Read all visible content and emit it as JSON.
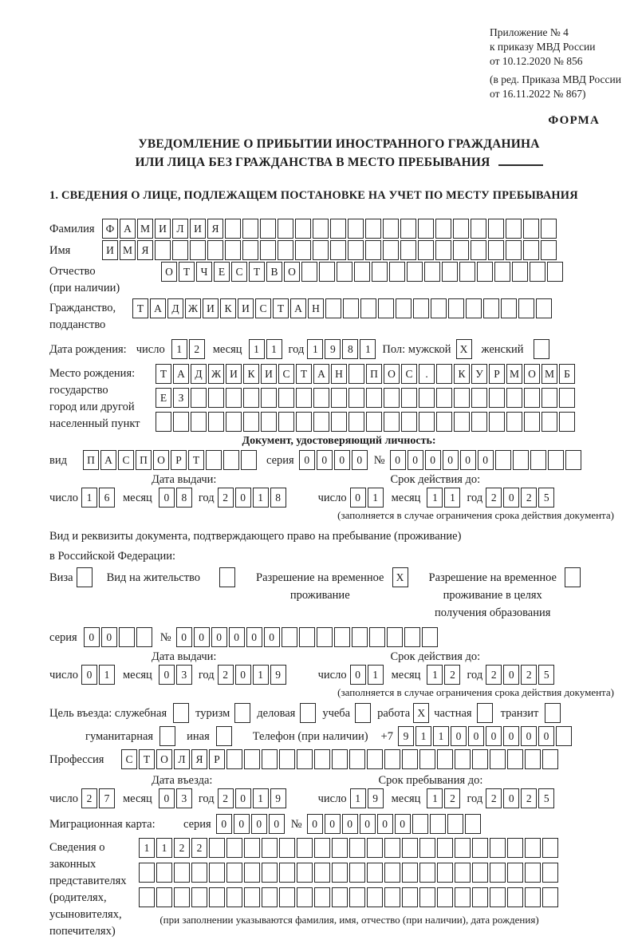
{
  "header": {
    "appendix_lines": [
      "Приложение № 4",
      "к приказу МВД России",
      "от 10.12.2020 № 856"
    ],
    "edition_lines": [
      "(в ред. Приказа МВД России",
      "от 16.11.2022 № 867)"
    ],
    "forma": "ФОРМА"
  },
  "title": {
    "line1": "УВЕДОМЛЕНИЕ О ПРИБЫТИИ ИНОСТРАННОГО ГРАЖДАНИНА",
    "line2": "ИЛИ ЛИЦА БЕЗ ГРАЖДАНСТВА В МЕСТО ПРЕБЫВАНИЯ"
  },
  "section1_heading": "1. СВЕДЕНИЯ О ЛИЦЕ, ПОДЛЕЖАЩЕМ ПОСТАНОВКЕ НА УЧЕТ ПО МЕСТУ ПРЕБЫВАНИЯ",
  "person": {
    "surname": {
      "label": "Фамилия",
      "value": "ФАМИЛИЯ",
      "size": 26
    },
    "name": {
      "label": "Имя",
      "value": "ИМЯ",
      "size": 26
    },
    "patronymic": {
      "label": "Отчество",
      "label2": "(при наличии)",
      "value": "ОТЧЕСТВО",
      "size": 23
    },
    "citizenship": {
      "label": "Гражданство,",
      "label2": "подданство",
      "value": "ТАДЖИКИСТАН",
      "size": 24
    },
    "birth": {
      "label": "Дата рождения:",
      "day_label": "число",
      "month_label": "месяц",
      "year_label": "год",
      "day": {
        "value": "12",
        "size": 2
      },
      "month": {
        "value": "11",
        "size": 2
      },
      "year": {
        "value": "1981",
        "size": 4
      },
      "sex_label": "Пол: мужской",
      "male": {
        "value": "X",
        "size": 1
      },
      "female_label": "женский",
      "female": {
        "value": "",
        "size": 1
      }
    },
    "birthplace": {
      "label1": "Место рождения:",
      "label2": "государство",
      "label3": "город или другой",
      "label4": "населенный пункт",
      "row1": {
        "value": "ТАДЖИКИСТАН ПОС. КУРМОМБ",
        "size": 24
      },
      "row2": {
        "value": "ЕЗ",
        "size": 24
      },
      "row3": {
        "value": "",
        "size": 24
      }
    }
  },
  "identity_doc": {
    "heading": "Документ, удостоверяющий личность:",
    "kind_label": "вид",
    "kind": {
      "value": "ПАСПОРТ",
      "size": 10
    },
    "series_label": "серия",
    "series": {
      "value": "0000",
      "size": 4
    },
    "number_label": "№",
    "number": {
      "value": "000000",
      "size": 11
    },
    "issue_label": "Дата выдачи:",
    "valid_label": "Срок действия до:",
    "day_label": "число",
    "month_label": "месяц",
    "year_label": "год",
    "issue_day": {
      "value": "16",
      "size": 2
    },
    "issue_month": {
      "value": "08",
      "size": 2
    },
    "issue_year": {
      "value": "2018",
      "size": 4
    },
    "valid_day": {
      "value": "01",
      "size": 2
    },
    "valid_month": {
      "value": "11",
      "size": 2
    },
    "valid_year": {
      "value": "2025",
      "size": 4
    },
    "note": "(заполняется в случае ограничения срока действия документа)"
  },
  "resident_doc": {
    "line1": "Вид и реквизиты документа, подтверждающего право на пребывание (проживание)",
    "line2": "в Российской Федерации:",
    "visa_label": "Виза",
    "visa": {
      "value": "",
      "size": 1
    },
    "residence_label": "Вид на жительство",
    "residence": {
      "value": "",
      "size": 1
    },
    "temp_label1": "Разрешение на временное",
    "temp_label2": "проживание",
    "temp": {
      "value": "X",
      "size": 1
    },
    "edu_label1": "Разрешение на временное",
    "edu_label2": "проживание в целях",
    "edu_label3": "получения образования",
    "edu": {
      "value": "",
      "size": 1
    },
    "series_label": "серия",
    "series": {
      "value": "00",
      "size": 4
    },
    "number_label": "№",
    "number": {
      "value": "000000",
      "size": 15
    },
    "issue_label": "Дата выдачи:",
    "valid_label": "Срок действия до:",
    "day_label": "число",
    "month_label": "месяц",
    "year_label": "год",
    "issue_day": {
      "value": "01",
      "size": 2
    },
    "issue_month": {
      "value": "03",
      "size": 2
    },
    "issue_year": {
      "value": "2019",
      "size": 4
    },
    "valid_day": {
      "value": "01",
      "size": 2
    },
    "valid_month": {
      "value": "12",
      "size": 2
    },
    "valid_year": {
      "value": "2025",
      "size": 4
    },
    "note": "(заполняется в случае ограничения срока действия документа)"
  },
  "visit": {
    "purpose_label": "Цель въезда: служебная",
    "service": {
      "value": "",
      "size": 1
    },
    "tourism_label": "туризм",
    "tourism": {
      "value": "",
      "size": 1
    },
    "business_label": "деловая",
    "business": {
      "value": "",
      "size": 1
    },
    "study_label": "учеба",
    "study": {
      "value": "",
      "size": 1
    },
    "work_label": "работа",
    "work": {
      "value": "X",
      "size": 1
    },
    "private_label": "частная",
    "private": {
      "value": "",
      "size": 1
    },
    "transit_label": "транзит",
    "transit": {
      "value": "",
      "size": 1
    },
    "humanitarian_label": "гуманитарная",
    "humanitarian": {
      "value": "",
      "size": 1
    },
    "other_label": "иная",
    "other": {
      "value": "",
      "size": 1
    },
    "phone_label": "Телефон (при наличии)",
    "phone_prefix": "+7",
    "phone": {
      "value": "911000000",
      "size": 10
    },
    "profession_label": "Профессия",
    "profession": {
      "value": "СТОЛЯР",
      "size": 25
    },
    "entry_label": "Дата въезда:",
    "stay_label": "Срок пребывания до:",
    "day_label": "число",
    "month_label": "месяц",
    "year_label": "год",
    "entry_day": {
      "value": "27",
      "size": 2
    },
    "entry_month": {
      "value": "03",
      "size": 2
    },
    "entry_year": {
      "value": "2019",
      "size": 4
    },
    "stay_day": {
      "value": "19",
      "size": 2
    },
    "stay_month": {
      "value": "12",
      "size": 2
    },
    "stay_year": {
      "value": "2025",
      "size": 4
    }
  },
  "migration_card": {
    "label": "Миграционная карта:",
    "series_label": "серия",
    "series": {
      "value": "0000",
      "size": 4
    },
    "number_label": "№",
    "number": {
      "value": "000000",
      "size": 10
    }
  },
  "legal_reps": {
    "labels": [
      "Сведения о",
      "законных",
      "представителях",
      "(родителях,",
      "усыновителях,",
      "попечителях)"
    ],
    "row1": {
      "value": "1122",
      "size": 24
    },
    "row2": {
      "value": "",
      "size": 24
    },
    "row3": {
      "value": "",
      "size": 24
    },
    "note": "(при заполнении указываются фамилия, имя, отчество (при наличии), дата рождения)"
  }
}
